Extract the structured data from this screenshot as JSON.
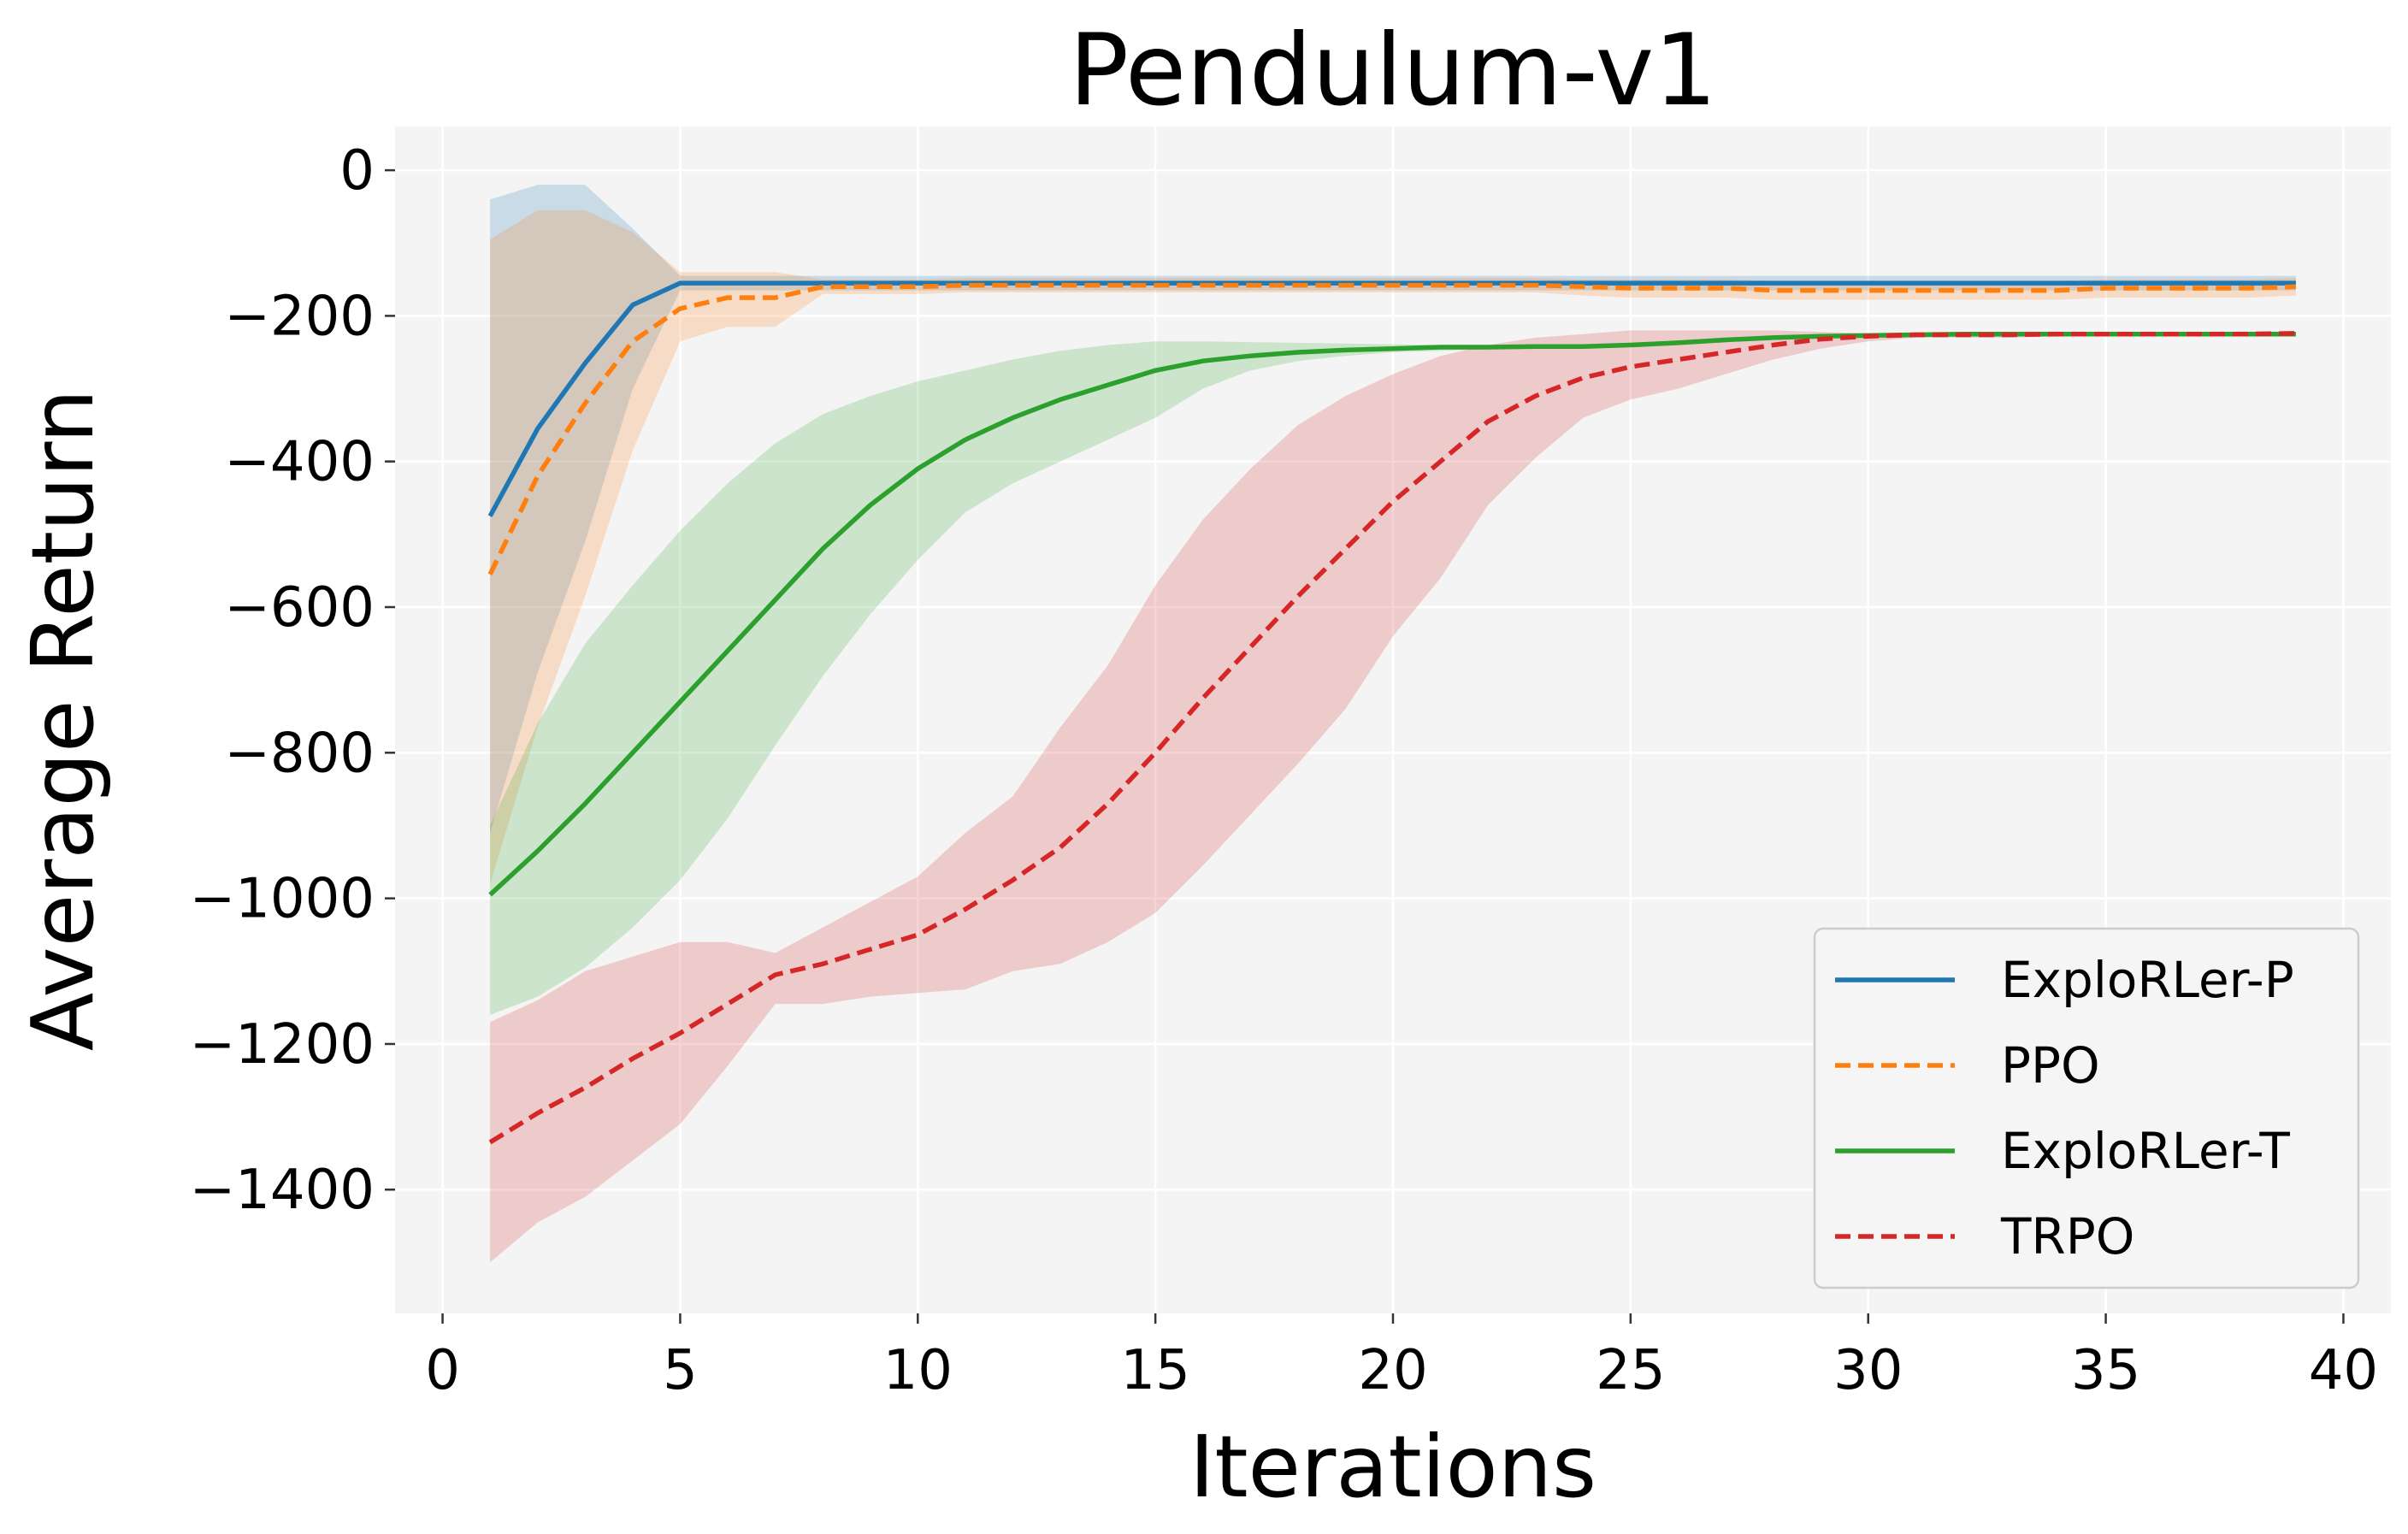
{
  "chart_data": {
    "type": "line",
    "title": "Pendulum-v1",
    "xlabel": "Iterations",
    "ylabel": "Average Return",
    "xlim": [
      -1,
      41
    ],
    "ylim": [
      -1570,
      60
    ],
    "xticks": [
      0,
      5,
      10,
      15,
      20,
      25,
      30,
      35,
      40
    ],
    "yticks": [
      0,
      -200,
      -400,
      -600,
      -800,
      -1000,
      -1200,
      -1400
    ],
    "xtick_labels": [
      "0",
      "5",
      "10",
      "15",
      "20",
      "25",
      "30",
      "35",
      "40"
    ],
    "ytick_labels": [
      "0",
      "−200",
      "−400",
      "−600",
      "−800",
      "−1000",
      "−1200",
      "−1400"
    ],
    "grid": true,
    "background": "#f4f4f4",
    "legend_position": "lower right",
    "x": [
      1,
      2,
      3,
      4,
      5,
      6,
      7,
      8,
      9,
      10,
      11,
      12,
      13,
      14,
      15,
      16,
      17,
      18,
      19,
      20,
      21,
      22,
      23,
      24,
      25,
      26,
      27,
      28,
      29,
      30,
      31,
      32,
      33,
      34,
      35,
      36,
      37,
      38,
      39
    ],
    "series": [
      {
        "name": "ExploRLer-P",
        "color": "#1f77b4",
        "dashed": false,
        "values": [
          -475,
          -355,
          -265,
          -185,
          -155,
          -155,
          -155,
          -155,
          -155,
          -155,
          -155,
          -155,
          -155,
          -155,
          -155,
          -155,
          -155,
          -155,
          -155,
          -155,
          -155,
          -155,
          -155,
          -155,
          -155,
          -155,
          -155,
          -155,
          -155,
          -155,
          -155,
          -155,
          -155,
          -155,
          -155,
          -155,
          -155,
          -155,
          -155
        ],
        "upper": [
          -40,
          -20,
          -20,
          -80,
          -145,
          -145,
          -145,
          -145,
          -145,
          -145,
          -145,
          -145,
          -145,
          -145,
          -145,
          -145,
          -145,
          -145,
          -145,
          -145,
          -145,
          -145,
          -145,
          -145,
          -145,
          -145,
          -145,
          -145,
          -145,
          -145,
          -145,
          -145,
          -145,
          -145,
          -145,
          -145,
          -145,
          -145,
          -145
        ],
        "lower": [
          -910,
          -690,
          -510,
          -300,
          -165,
          -165,
          -165,
          -165,
          -165,
          -165,
          -165,
          -165,
          -165,
          -165,
          -165,
          -165,
          -165,
          -165,
          -165,
          -165,
          -165,
          -165,
          -165,
          -165,
          -165,
          -165,
          -165,
          -165,
          -165,
          -165,
          -165,
          -165,
          -165,
          -165,
          -165,
          -165,
          -165,
          -165,
          -165
        ]
      },
      {
        "name": "PPO",
        "color": "#ff7f0e",
        "dashed": true,
        "values": [
          -555,
          -420,
          -320,
          -235,
          -190,
          -175,
          -175,
          -160,
          -160,
          -160,
          -158,
          -158,
          -158,
          -158,
          -158,
          -158,
          -158,
          -158,
          -158,
          -158,
          -158,
          -158,
          -158,
          -160,
          -162,
          -162,
          -162,
          -165,
          -165,
          -165,
          -165,
          -165,
          -165,
          -165,
          -162,
          -162,
          -162,
          -162,
          -160
        ],
        "upper": [
          -95,
          -55,
          -55,
          -85,
          -140,
          -140,
          -140,
          -150,
          -150,
          -150,
          -148,
          -148,
          -148,
          -148,
          -148,
          -148,
          -148,
          -148,
          -148,
          -148,
          -148,
          -148,
          -148,
          -150,
          -150,
          -150,
          -150,
          -152,
          -152,
          -152,
          -152,
          -152,
          -152,
          -152,
          -150,
          -150,
          -150,
          -150,
          -148
        ],
        "lower": [
          -980,
          -765,
          -585,
          -385,
          -235,
          -215,
          -215,
          -170,
          -170,
          -170,
          -168,
          -168,
          -168,
          -168,
          -168,
          -168,
          -168,
          -168,
          -168,
          -168,
          -168,
          -168,
          -168,
          -172,
          -175,
          -175,
          -175,
          -178,
          -178,
          -178,
          -178,
          -178,
          -178,
          -178,
          -175,
          -175,
          -175,
          -175,
          -172
        ]
      },
      {
        "name": "ExploRLer-T",
        "color": "#2ca02c",
        "dashed": false,
        "values": [
          -995,
          -935,
          -870,
          -800,
          -730,
          -660,
          -590,
          -520,
          -460,
          -410,
          -370,
          -340,
          -315,
          -295,
          -275,
          -262,
          -255,
          -250,
          -247,
          -245,
          -243,
          -243,
          -242,
          -242,
          -240,
          -237,
          -233,
          -230,
          -228,
          -227,
          -226,
          -225,
          -225,
          -225,
          -225,
          -225,
          -225,
          -225,
          -225
        ],
        "upper": [
          -900,
          -760,
          -650,
          -570,
          -495,
          -430,
          -375,
          -335,
          -310,
          -290,
          -275,
          -260,
          -248,
          -240,
          -235,
          -235,
          -236,
          -237,
          -238,
          -239,
          -240,
          -240,
          -240,
          -240,
          -238,
          -234,
          -230,
          -228,
          -226,
          -225,
          -224,
          -223,
          -223,
          -223,
          -223,
          -223,
          -223,
          -223,
          -223
        ],
        "lower": [
          -1160,
          -1135,
          -1095,
          -1040,
          -975,
          -890,
          -790,
          -695,
          -610,
          -535,
          -470,
          -430,
          -400,
          -370,
          -340,
          -300,
          -275,
          -262,
          -255,
          -250,
          -248,
          -246,
          -245,
          -244,
          -242,
          -239,
          -235,
          -232,
          -230,
          -229,
          -228,
          -227,
          -227,
          -227,
          -227,
          -227,
          -227,
          -227,
          -227
        ]
      },
      {
        "name": "TRPO",
        "color": "#d62728",
        "dashed": true,
        "values": [
          -1335,
          -1295,
          -1260,
          -1220,
          -1185,
          -1145,
          -1105,
          -1090,
          -1070,
          -1050,
          -1015,
          -975,
          -930,
          -870,
          -800,
          -725,
          -655,
          -585,
          -520,
          -455,
          -400,
          -345,
          -310,
          -285,
          -270,
          -260,
          -250,
          -240,
          -232,
          -228,
          -226,
          -226,
          -226,
          -225,
          -225,
          -225,
          -225,
          -225,
          -224
        ],
        "upper": [
          -1170,
          -1140,
          -1100,
          -1080,
          -1060,
          -1060,
          -1075,
          -1040,
          -1005,
          -970,
          -910,
          -860,
          -765,
          -680,
          -570,
          -480,
          -410,
          -350,
          -310,
          -280,
          -255,
          -240,
          -230,
          -225,
          -220,
          -220,
          -220,
          -220,
          -222,
          -224,
          -224,
          -224,
          -224,
          -223,
          -223,
          -223,
          -223,
          -223,
          -222
        ],
        "lower": [
          -1500,
          -1445,
          -1410,
          -1360,
          -1310,
          -1230,
          -1145,
          -1145,
          -1135,
          -1130,
          -1125,
          -1100,
          -1090,
          -1060,
          -1020,
          -955,
          -885,
          -815,
          -740,
          -640,
          -560,
          -460,
          -395,
          -340,
          -315,
          -300,
          -280,
          -260,
          -245,
          -235,
          -230,
          -230,
          -230,
          -228,
          -228,
          -228,
          -228,
          -228,
          -228
        ]
      }
    ]
  }
}
